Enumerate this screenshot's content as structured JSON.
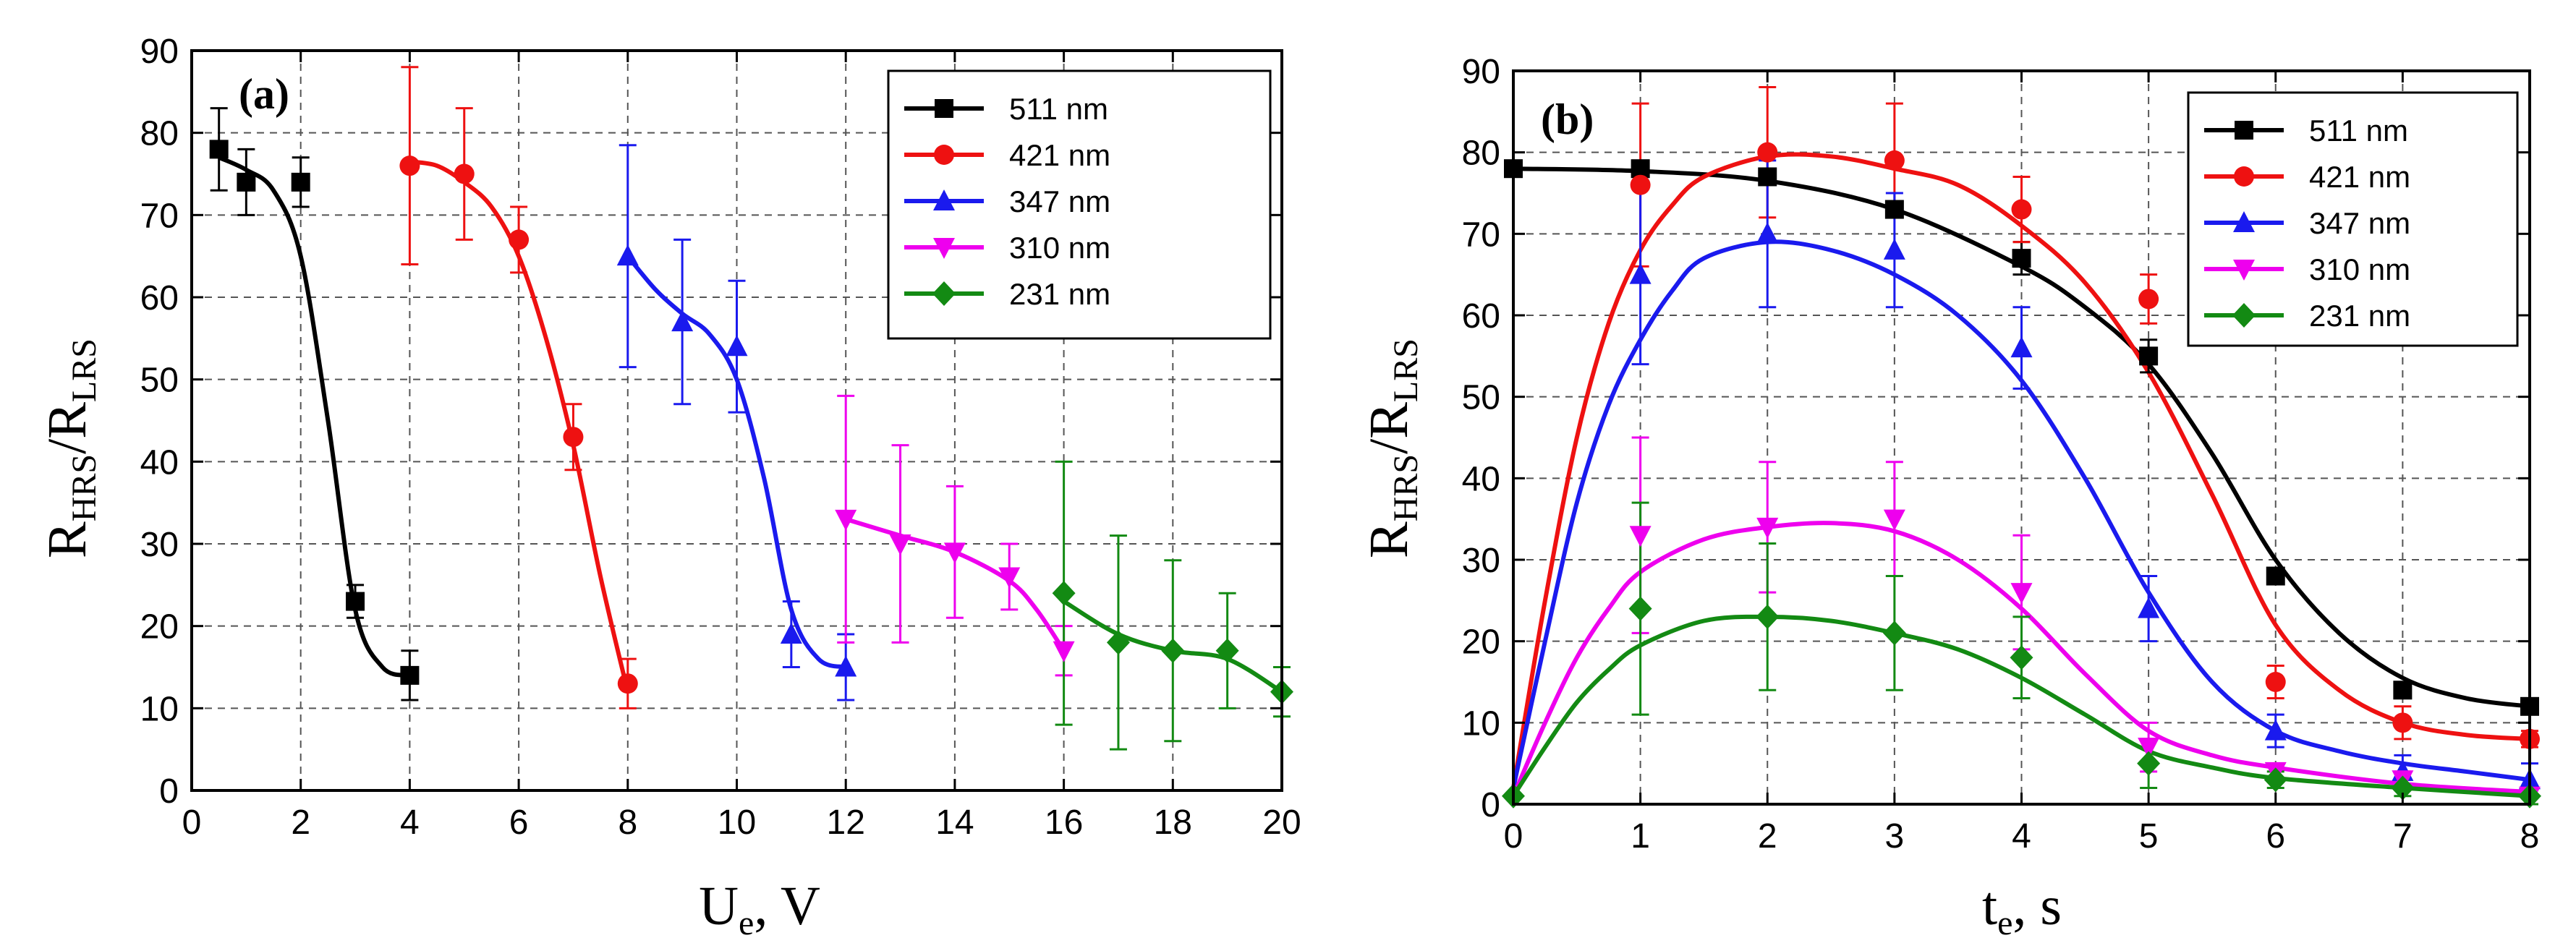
{
  "chart_data": [
    {
      "type": "scatter",
      "panel_label": "(a)",
      "x_label_main": "U",
      "x_label_sub": "e",
      "x_label_unit": ", V",
      "y_label_main": "R",
      "y_label_sub1": "HRS",
      "y_label_sep": "/R",
      "y_label_sub2": "LRS",
      "xlim": [
        0,
        20
      ],
      "ylim": [
        0,
        90
      ],
      "xticks": [
        0,
        2,
        4,
        6,
        8,
        10,
        12,
        14,
        16,
        18,
        20
      ],
      "yticks": [
        0,
        10,
        20,
        30,
        40,
        50,
        60,
        70,
        80,
        90
      ],
      "grid": true,
      "legend_position": "top-right",
      "series": [
        {
          "name": "511 nm",
          "color": "#000000",
          "marker": "square",
          "points": [
            {
              "x": 0.5,
              "y": 78,
              "err": 5
            },
            {
              "x": 1,
              "y": 74,
              "err": 4
            },
            {
              "x": 2,
              "y": 74,
              "err": 3
            },
            {
              "x": 3,
              "y": 23,
              "err": 2
            },
            {
              "x": 4,
              "y": 14,
              "err": 3
            }
          ],
          "fit": [
            {
              "x": 0.5,
              "y": 77
            },
            {
              "x": 1,
              "y": 75.5
            },
            {
              "x": 1.5,
              "y": 73
            },
            {
              "x": 2,
              "y": 65
            },
            {
              "x": 2.5,
              "y": 45
            },
            {
              "x": 3,
              "y": 22
            },
            {
              "x": 3.5,
              "y": 15
            },
            {
              "x": 4,
              "y": 14
            }
          ]
        },
        {
          "name": "421 nm",
          "color": "#ee1111",
          "marker": "circle",
          "points": [
            {
              "x": 4,
              "y": 76,
              "err": 12
            },
            {
              "x": 5,
              "y": 75,
              "err": 8
            },
            {
              "x": 6,
              "y": 67,
              "err": 4
            },
            {
              "x": 7,
              "y": 43,
              "err": 4
            },
            {
              "x": 8,
              "y": 13,
              "err": 3
            }
          ],
          "fit": [
            {
              "x": 4,
              "y": 76.5
            },
            {
              "x": 4.5,
              "y": 76
            },
            {
              "x": 5,
              "y": 74
            },
            {
              "x": 5.5,
              "y": 71
            },
            {
              "x": 6,
              "y": 65
            },
            {
              "x": 6.5,
              "y": 55
            },
            {
              "x": 7,
              "y": 42
            },
            {
              "x": 7.5,
              "y": 26
            },
            {
              "x": 8,
              "y": 12
            }
          ]
        },
        {
          "name": "347 nm",
          "color": "#1a1aee",
          "marker": "triangle-up",
          "points": [
            {
              "x": 8,
              "y": 65,
              "err": 13.5
            },
            {
              "x": 9,
              "y": 57,
              "err": 10
            },
            {
              "x": 10,
              "y": 54,
              "err": 8
            },
            {
              "x": 11,
              "y": 19,
              "err": 4
            },
            {
              "x": 12,
              "y": 15,
              "err": 4
            }
          ],
          "fit": [
            {
              "x": 8,
              "y": 65
            },
            {
              "x": 8.5,
              "y": 61
            },
            {
              "x": 9,
              "y": 58
            },
            {
              "x": 9.5,
              "y": 55.5
            },
            {
              "x": 10,
              "y": 50
            },
            {
              "x": 10.5,
              "y": 38
            },
            {
              "x": 11,
              "y": 22
            },
            {
              "x": 11.5,
              "y": 16
            },
            {
              "x": 12,
              "y": 15
            }
          ]
        },
        {
          "name": "310 nm",
          "color": "#ee00ee",
          "marker": "triangle-down",
          "points": [
            {
              "x": 12,
              "y": 33,
              "err": 15
            },
            {
              "x": 13,
              "y": 30,
              "err": 12
            },
            {
              "x": 14,
              "y": 29,
              "err": 8
            },
            {
              "x": 15,
              "y": 26,
              "err": 4
            },
            {
              "x": 16,
              "y": 17,
              "err": 3
            }
          ],
          "fit": [
            {
              "x": 12,
              "y": 33
            },
            {
              "x": 13,
              "y": 31
            },
            {
              "x": 14,
              "y": 29
            },
            {
              "x": 15,
              "y": 25.5
            },
            {
              "x": 15.5,
              "y": 22
            },
            {
              "x": 16,
              "y": 17
            }
          ]
        },
        {
          "name": "231 nm",
          "color": "#138a13",
          "marker": "diamond",
          "points": [
            {
              "x": 16,
              "y": 24,
              "err": 16
            },
            {
              "x": 17,
              "y": 18,
              "err": 13
            },
            {
              "x": 18,
              "y": 17,
              "err": 11
            },
            {
              "x": 19,
              "y": 17,
              "err": 7
            },
            {
              "x": 20,
              "y": 12,
              "err": 3
            }
          ],
          "fit": [
            {
              "x": 16,
              "y": 23
            },
            {
              "x": 17,
              "y": 19
            },
            {
              "x": 18,
              "y": 17
            },
            {
              "x": 19,
              "y": 16
            },
            {
              "x": 20,
              "y": 12
            }
          ]
        }
      ]
    },
    {
      "type": "scatter",
      "panel_label": "(b)",
      "x_label_main": "t",
      "x_label_sub": "e",
      "x_label_unit": ", s",
      "y_label_main": "R",
      "y_label_sub1": "HRS",
      "y_label_sep": "/R",
      "y_label_sub2": "LRS",
      "xlim": [
        0,
        8
      ],
      "ylim": [
        0,
        90
      ],
      "xticks": [
        0,
        1,
        2,
        3,
        4,
        5,
        6,
        7,
        8
      ],
      "yticks": [
        0,
        10,
        20,
        30,
        40,
        50,
        60,
        70,
        80,
        90
      ],
      "grid": true,
      "legend_position": "top-right",
      "series": [
        {
          "name": "511 nm",
          "color": "#000000",
          "marker": "square",
          "points": [
            {
              "x": 0,
              "y": 78,
              "err": 0
            },
            {
              "x": 1,
              "y": 78,
              "err": 0
            },
            {
              "x": 2,
              "y": 77,
              "err": 0
            },
            {
              "x": 3,
              "y": 73,
              "err": 0
            },
            {
              "x": 4,
              "y": 67,
              "err": 2
            },
            {
              "x": 5,
              "y": 55,
              "err": 2
            },
            {
              "x": 6,
              "y": 28,
              "err": 0
            },
            {
              "x": 7,
              "y": 14,
              "err": 0
            },
            {
              "x": 8,
              "y": 12,
              "err": 0
            }
          ],
          "fit": [
            {
              "x": 0,
              "y": 78
            },
            {
              "x": 1,
              "y": 77.7
            },
            {
              "x": 2,
              "y": 76.5
            },
            {
              "x": 3,
              "y": 73
            },
            {
              "x": 4,
              "y": 66
            },
            {
              "x": 4.5,
              "y": 61
            },
            {
              "x": 5,
              "y": 54
            },
            {
              "x": 5.5,
              "y": 43
            },
            {
              "x": 6,
              "y": 30
            },
            {
              "x": 6.5,
              "y": 21
            },
            {
              "x": 7,
              "y": 15.5
            },
            {
              "x": 7.5,
              "y": 13
            },
            {
              "x": 8,
              "y": 12
            }
          ]
        },
        {
          "name": "421 nm",
          "color": "#ee1111",
          "marker": "circle",
          "points": [
            {
              "x": 1,
              "y": 76,
              "err": 10
            },
            {
              "x": 2,
              "y": 80,
              "err": 8
            },
            {
              "x": 3,
              "y": 79,
              "err": 7
            },
            {
              "x": 4,
              "y": 73,
              "err": 4
            },
            {
              "x": 5,
              "y": 62,
              "err": 3
            },
            {
              "x": 6,
              "y": 15,
              "err": 2
            },
            {
              "x": 7,
              "y": 10,
              "err": 2
            },
            {
              "x": 8,
              "y": 8,
              "err": 1
            }
          ],
          "fit": [
            {
              "x": 0,
              "y": 2
            },
            {
              "x": 0.25,
              "y": 25
            },
            {
              "x": 0.5,
              "y": 45
            },
            {
              "x": 0.75,
              "y": 59
            },
            {
              "x": 1,
              "y": 68
            },
            {
              "x": 1.25,
              "y": 73.5
            },
            {
              "x": 1.5,
              "y": 77
            },
            {
              "x": 2,
              "y": 79.5
            },
            {
              "x": 2.5,
              "y": 79.5
            },
            {
              "x": 3,
              "y": 78
            },
            {
              "x": 3.5,
              "y": 76
            },
            {
              "x": 4,
              "y": 71
            },
            {
              "x": 4.5,
              "y": 64
            },
            {
              "x": 5,
              "y": 53
            },
            {
              "x": 5.5,
              "y": 38
            },
            {
              "x": 6,
              "y": 22
            },
            {
              "x": 6.5,
              "y": 14
            },
            {
              "x": 7,
              "y": 10
            },
            {
              "x": 7.5,
              "y": 8.5
            },
            {
              "x": 8,
              "y": 8
            }
          ]
        },
        {
          "name": "347 nm",
          "color": "#1a1aee",
          "marker": "triangle-up",
          "points": [
            {
              "x": 1,
              "y": 65,
              "err": 11
            },
            {
              "x": 2,
              "y": 70,
              "err": 9
            },
            {
              "x": 3,
              "y": 68,
              "err": 7
            },
            {
              "x": 4,
              "y": 56,
              "err": 5
            },
            {
              "x": 5,
              "y": 24,
              "err": 4
            },
            {
              "x": 6,
              "y": 9,
              "err": 2
            },
            {
              "x": 7,
              "y": 4,
              "err": 2
            },
            {
              "x": 8,
              "y": 3,
              "err": 2
            }
          ],
          "fit": [
            {
              "x": 0,
              "y": 2
            },
            {
              "x": 0.25,
              "y": 20
            },
            {
              "x": 0.5,
              "y": 37
            },
            {
              "x": 0.75,
              "y": 49
            },
            {
              "x": 1,
              "y": 57
            },
            {
              "x": 1.25,
              "y": 63
            },
            {
              "x": 1.5,
              "y": 67
            },
            {
              "x": 2,
              "y": 69
            },
            {
              "x": 2.5,
              "y": 68
            },
            {
              "x": 3,
              "y": 65
            },
            {
              "x": 3.5,
              "y": 60
            },
            {
              "x": 4,
              "y": 52
            },
            {
              "x": 4.5,
              "y": 40
            },
            {
              "x": 5,
              "y": 26
            },
            {
              "x": 5.5,
              "y": 15
            },
            {
              "x": 6,
              "y": 9
            },
            {
              "x": 6.5,
              "y": 6.5
            },
            {
              "x": 7,
              "y": 5
            },
            {
              "x": 7.5,
              "y": 4
            },
            {
              "x": 8,
              "y": 3
            }
          ]
        },
        {
          "name": "310 nm",
          "color": "#ee00ee",
          "marker": "triangle-down",
          "points": [
            {
              "x": 1,
              "y": 33,
              "err": 12
            },
            {
              "x": 2,
              "y": 34,
              "err": 8
            },
            {
              "x": 3,
              "y": 35,
              "err": 7
            },
            {
              "x": 4,
              "y": 26,
              "err": 7
            },
            {
              "x": 5,
              "y": 7,
              "err": 3
            },
            {
              "x": 6,
              "y": 4,
              "err": 1
            },
            {
              "x": 7,
              "y": 3,
              "err": 1
            },
            {
              "x": 8,
              "y": 1,
              "err": 1
            }
          ],
          "fit": [
            {
              "x": 0,
              "y": 1
            },
            {
              "x": 0.25,
              "y": 10
            },
            {
              "x": 0.5,
              "y": 18
            },
            {
              "x": 0.75,
              "y": 24
            },
            {
              "x": 1,
              "y": 28.5
            },
            {
              "x": 1.5,
              "y": 32.5
            },
            {
              "x": 2,
              "y": 34
            },
            {
              "x": 2.5,
              "y": 34.5
            },
            {
              "x": 3,
              "y": 33.5
            },
            {
              "x": 3.5,
              "y": 30
            },
            {
              "x": 4,
              "y": 24
            },
            {
              "x": 4.5,
              "y": 16
            },
            {
              "x": 5,
              "y": 9
            },
            {
              "x": 5.5,
              "y": 6
            },
            {
              "x": 6,
              "y": 4.5
            },
            {
              "x": 7,
              "y": 2.5
            },
            {
              "x": 8,
              "y": 1.5
            }
          ]
        },
        {
          "name": "231 nm",
          "color": "#138a13",
          "marker": "diamond",
          "points": [
            {
              "x": 0,
              "y": 1,
              "err": 0
            },
            {
              "x": 1,
              "y": 24,
              "err": 13
            },
            {
              "x": 2,
              "y": 23,
              "err": 9
            },
            {
              "x": 3,
              "y": 21,
              "err": 7
            },
            {
              "x": 4,
              "y": 18,
              "err": 5
            },
            {
              "x": 5,
              "y": 5,
              "err": 3
            },
            {
              "x": 6,
              "y": 3,
              "err": 1
            },
            {
              "x": 7,
              "y": 2,
              "err": 1
            },
            {
              "x": 8,
              "y": 1,
              "err": 1
            }
          ],
          "fit": [
            {
              "x": 0,
              "y": 1
            },
            {
              "x": 0.25,
              "y": 7
            },
            {
              "x": 0.5,
              "y": 12.5
            },
            {
              "x": 0.75,
              "y": 16.5
            },
            {
              "x": 1,
              "y": 19.5
            },
            {
              "x": 1.5,
              "y": 22.5
            },
            {
              "x": 2,
              "y": 23
            },
            {
              "x": 2.5,
              "y": 22.5
            },
            {
              "x": 3,
              "y": 21
            },
            {
              "x": 3.5,
              "y": 19
            },
            {
              "x": 4,
              "y": 15.5
            },
            {
              "x": 4.5,
              "y": 11
            },
            {
              "x": 5,
              "y": 6.5
            },
            {
              "x": 5.5,
              "y": 4.5
            },
            {
              "x": 6,
              "y": 3.2
            },
            {
              "x": 7,
              "y": 2
            },
            {
              "x": 8,
              "y": 1
            }
          ]
        }
      ]
    }
  ]
}
